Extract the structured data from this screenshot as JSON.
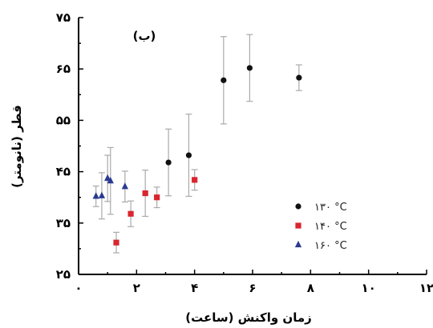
{
  "chart_data": {
    "type": "scatter",
    "panel_label": "(ب)",
    "xlabel": "زمان واکنش (ساعت)",
    "ylabel": "قطر (نانومتر)",
    "xlim": [
      0,
      12
    ],
    "ylim": [
      25,
      75
    ],
    "x_ticks": [
      0,
      2,
      4,
      6,
      8,
      10,
      12
    ],
    "x_tick_labels": [
      "۰",
      "۲",
      "۴",
      "۶",
      "۸",
      "۱۰",
      "۱۲"
    ],
    "y_ticks": [
      25,
      35,
      45,
      55,
      65,
      75
    ],
    "y_tick_labels": [
      "۲۵",
      "۳۵",
      "۴۵",
      "۵۵",
      "۶۵",
      "۷۵"
    ],
    "legend_position": "right-middle",
    "series": [
      {
        "name": "۱۳۰ °C",
        "color": "#111111",
        "marker": "circle",
        "points": [
          {
            "x": 3.1,
            "y": 46.8,
            "err": 6.5
          },
          {
            "x": 3.8,
            "y": 48.2,
            "err": 8.0
          },
          {
            "x": 5.0,
            "y": 62.8,
            "err": 8.5
          },
          {
            "x": 5.9,
            "y": 65.2,
            "err": 6.5
          },
          {
            "x": 7.6,
            "y": 63.3,
            "err": 2.5
          }
        ]
      },
      {
        "name": "۱۴۰ °C",
        "color": "#d9262f",
        "marker": "square",
        "points": [
          {
            "x": 1.3,
            "y": 31.2,
            "err": 2.0
          },
          {
            "x": 1.8,
            "y": 36.8,
            "err": 2.5
          },
          {
            "x": 2.3,
            "y": 40.8,
            "err": 4.5
          },
          {
            "x": 2.7,
            "y": 40.0,
            "err": 2.0
          },
          {
            "x": 4.0,
            "y": 43.4,
            "err": 2.0
          }
        ]
      },
      {
        "name": "۱۶۰ °C",
        "color": "#2b3a8f",
        "marker": "triangle",
        "points": [
          {
            "x": 0.6,
            "y": 40.2,
            "err": 2.0
          },
          {
            "x": 0.8,
            "y": 40.3,
            "err": 4.5
          },
          {
            "x": 1.0,
            "y": 43.7,
            "err": 4.5
          },
          {
            "x": 1.1,
            "y": 43.2,
            "err": 6.5
          },
          {
            "x": 1.6,
            "y": 42.1,
            "err": 3.0
          }
        ]
      }
    ]
  }
}
